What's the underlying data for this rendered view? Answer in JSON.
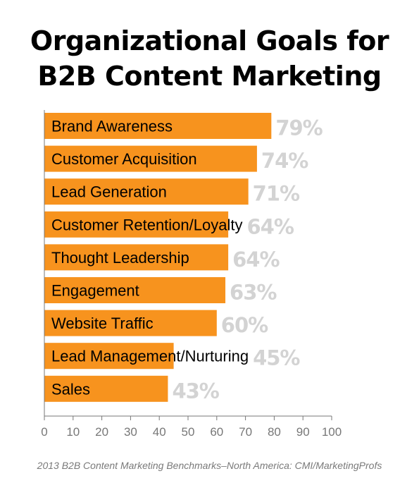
{
  "chart_data": {
    "type": "bar",
    "orientation": "horizontal",
    "title": [
      "Organizational Goals for",
      "B2B Content Marketing"
    ],
    "categories": [
      "Brand Awareness",
      "Customer Acquisition",
      "Lead Generation",
      "Customer Retention/Loyalty",
      "Thought Leadership",
      "Engagement",
      "Website Traffic",
      "Lead Management/Nurturing",
      "Sales"
    ],
    "values": [
      79,
      74,
      71,
      64,
      64,
      63,
      60,
      45,
      43
    ],
    "value_labels": [
      "79%",
      "74%",
      "71%",
      "64%",
      "64%",
      "63%",
      "60%",
      "45%",
      "43%"
    ],
    "xlim": [
      0,
      100
    ],
    "xticks": [
      "0",
      "10",
      "20",
      "30",
      "40",
      "50",
      "60",
      "70",
      "80",
      "90",
      "100"
    ],
    "xtick_values": [
      0,
      10,
      20,
      30,
      40,
      50,
      60,
      70,
      80,
      90,
      100
    ],
    "grid": false,
    "bar_color": "#F7931E",
    "value_label_color": "#D3D3D3",
    "source": "2013 B2B Content Marketing Benchmarks–North America: CMI/MarketingProfs"
  }
}
